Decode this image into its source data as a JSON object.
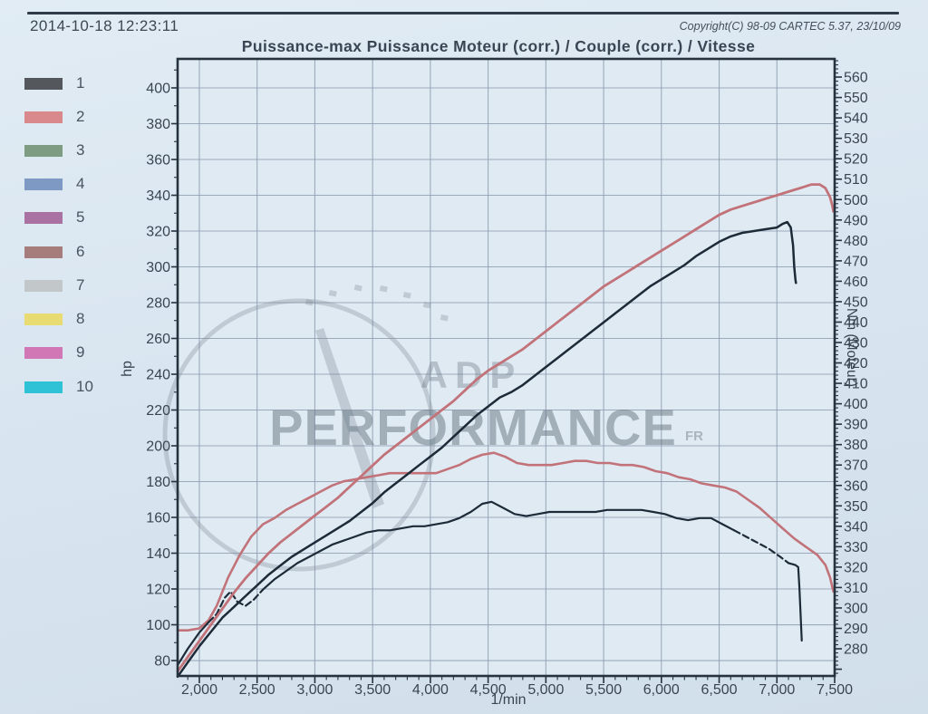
{
  "page": {
    "timestamp": "2014-10-18 12:23:11",
    "copyright": "Copyright(C) 98-09 CARTEC 5.37, 23/10/09",
    "title": "Puissance-max Puissance Moteur (corr.) / Couple (corr.) / Vitesse"
  },
  "legend": {
    "items": [
      {
        "label": "1",
        "color": "#54575c"
      },
      {
        "label": "2",
        "color": "#d9898c"
      },
      {
        "label": "3",
        "color": "#7d9c81"
      },
      {
        "label": "4",
        "color": "#7d99c4"
      },
      {
        "label": "5",
        "color": "#a972a2"
      },
      {
        "label": "6",
        "color": "#a67d7b"
      },
      {
        "label": "7",
        "color": "#c2c7ca"
      },
      {
        "label": "8",
        "color": "#e7db72"
      },
      {
        "label": "9",
        "color": "#d177b5"
      },
      {
        "label": "10",
        "color": "#2fc2d6"
      }
    ]
  },
  "watermark": {
    "top_text": "ADP",
    "main_text": "PERFORMANCE",
    "suffix_text": "FR"
  },
  "colors": {
    "axis": "#26323e",
    "grid": "#8fa0b2",
    "plot_bg": "#e0eaf3",
    "text": "#3b4552",
    "curve_dark": "#1d2b38",
    "curve_red": "#c2737a"
  },
  "chart_data": {
    "type": "line",
    "title": "Puissance-max Puissance Moteur (corr.) / Couple (corr.) / Vitesse",
    "xlabel": "1/min",
    "ylabel_left": "hp",
    "ylabel_right": "Nm (Moteur)",
    "x_range": [
      1812,
      7500
    ],
    "y_left_range": [
      71.4,
      416.2
    ],
    "y_right_range": [
      266.7,
      568.9
    ],
    "x_ticks": [
      {
        "value": 2000,
        "label": "2,000"
      },
      {
        "value": 2500,
        "label": "2,500"
      },
      {
        "value": 3000,
        "label": "3,000"
      },
      {
        "value": 3500,
        "label": "3,500"
      },
      {
        "value": 4000,
        "label": "4,000"
      },
      {
        "value": 4500,
        "label": "4,500"
      },
      {
        "value": 5000,
        "label": "5,000"
      },
      {
        "value": 5500,
        "label": "5,500"
      },
      {
        "value": 6000,
        "label": "6,000"
      },
      {
        "value": 6500,
        "label": "6,500"
      },
      {
        "value": 7000,
        "label": "7,000"
      },
      {
        "value": 7500,
        "label": "7,500"
      }
    ],
    "y_left_ticks": [
      80,
      100,
      120,
      140,
      160,
      180,
      200,
      220,
      240,
      260,
      280,
      300,
      320,
      340,
      360,
      380,
      400
    ],
    "y_right_ticks": [
      280,
      290,
      300,
      310,
      320,
      330,
      340,
      350,
      360,
      370,
      380,
      390,
      400,
      410,
      420,
      430,
      440,
      450,
      460,
      470,
      480,
      490,
      500,
      510,
      520,
      530,
      540,
      550,
      560
    ],
    "x_minor_step": 100,
    "y_left_minor_step": 10,
    "y_right_minor_step": 2,
    "grid": {
      "vertical_step_rpm": 500,
      "horizontal_step_hp": 20,
      "grid_on": true
    },
    "legend_position": "left",
    "series": [
      {
        "name": "couple_corr_run_red",
        "legend_ref": "2",
        "axis": "right",
        "color": "#c2737a",
        "width": 2.6,
        "unit": "Nm",
        "points": [
          [
            1812,
            289
          ],
          [
            1900,
            289
          ],
          [
            2000,
            290
          ],
          [
            2080,
            294
          ],
          [
            2150,
            301
          ],
          [
            2250,
            315
          ],
          [
            2350,
            326
          ],
          [
            2450,
            335
          ],
          [
            2550,
            341
          ],
          [
            2650,
            344
          ],
          [
            2750,
            348
          ],
          [
            2850,
            351
          ],
          [
            2950,
            354
          ],
          [
            3050,
            357
          ],
          [
            3150,
            360
          ],
          [
            3250,
            362
          ],
          [
            3350,
            363
          ],
          [
            3450,
            364
          ],
          [
            3550,
            365
          ],
          [
            3650,
            366
          ],
          [
            3750,
            366
          ],
          [
            3850,
            366
          ],
          [
            3950,
            366
          ],
          [
            4050,
            366
          ],
          [
            4150,
            368
          ],
          [
            4250,
            370
          ],
          [
            4350,
            373
          ],
          [
            4450,
            375
          ],
          [
            4550,
            376
          ],
          [
            4650,
            374
          ],
          [
            4750,
            371
          ],
          [
            4850,
            370
          ],
          [
            4950,
            370
          ],
          [
            5050,
            370
          ],
          [
            5150,
            371
          ],
          [
            5250,
            372
          ],
          [
            5350,
            372
          ],
          [
            5450,
            371
          ],
          [
            5550,
            371
          ],
          [
            5650,
            370
          ],
          [
            5750,
            370
          ],
          [
            5850,
            369
          ],
          [
            5950,
            367
          ],
          [
            6050,
            366
          ],
          [
            6150,
            364
          ],
          [
            6250,
            363
          ],
          [
            6350,
            361
          ],
          [
            6450,
            360
          ],
          [
            6550,
            359
          ],
          [
            6650,
            357
          ],
          [
            6750,
            353
          ],
          [
            6850,
            349
          ],
          [
            6950,
            344
          ],
          [
            7050,
            339
          ],
          [
            7150,
            334
          ],
          [
            7250,
            330
          ],
          [
            7350,
            326
          ],
          [
            7420,
            321
          ],
          [
            7460,
            315
          ],
          [
            7480,
            310
          ],
          [
            7490,
            308
          ]
        ]
      },
      {
        "name": "couple_corr_run_dark",
        "legend_ref": "1",
        "axis": "right",
        "color": "#1d2b38",
        "width": 2.2,
        "unit": "Nm",
        "dash_ranges": [
          [
            2050,
            2570
          ],
          [
            6620,
            7090
          ]
        ],
        "points": [
          [
            1812,
            272
          ],
          [
            1900,
            280
          ],
          [
            2000,
            288
          ],
          [
            2080,
            293
          ],
          [
            2150,
            297
          ],
          [
            2220,
            305
          ],
          [
            2270,
            308
          ],
          [
            2330,
            303
          ],
          [
            2400,
            301
          ],
          [
            2470,
            304
          ],
          [
            2550,
            309
          ],
          [
            2650,
            314
          ],
          [
            2750,
            318
          ],
          [
            2850,
            322
          ],
          [
            2950,
            325
          ],
          [
            3050,
            328
          ],
          [
            3150,
            331
          ],
          [
            3250,
            333
          ],
          [
            3350,
            335
          ],
          [
            3450,
            337
          ],
          [
            3550,
            338
          ],
          [
            3650,
            338
          ],
          [
            3750,
            339
          ],
          [
            3850,
            340
          ],
          [
            3950,
            340
          ],
          [
            4050,
            341
          ],
          [
            4150,
            342
          ],
          [
            4250,
            344
          ],
          [
            4350,
            347
          ],
          [
            4450,
            351
          ],
          [
            4530,
            352
          ],
          [
            4630,
            349
          ],
          [
            4730,
            346
          ],
          [
            4830,
            345
          ],
          [
            4930,
            346
          ],
          [
            5030,
            347
          ],
          [
            5130,
            347
          ],
          [
            5230,
            347
          ],
          [
            5330,
            347
          ],
          [
            5430,
            347
          ],
          [
            5530,
            348
          ],
          [
            5630,
            348
          ],
          [
            5730,
            348
          ],
          [
            5830,
            348
          ],
          [
            5930,
            347
          ],
          [
            6030,
            346
          ],
          [
            6130,
            344
          ],
          [
            6230,
            343
          ],
          [
            6330,
            344
          ],
          [
            6430,
            344
          ],
          [
            6530,
            341
          ],
          [
            6630,
            338
          ],
          [
            6730,
            335
          ],
          [
            6830,
            332
          ],
          [
            6930,
            329
          ],
          [
            7030,
            325
          ],
          [
            7100,
            322
          ],
          [
            7160,
            321
          ],
          [
            7185,
            320
          ],
          [
            7195,
            310
          ],
          [
            7205,
            297
          ],
          [
            7215,
            284
          ]
        ]
      },
      {
        "name": "puissance_corr_run_red",
        "legend_ref": "2",
        "axis": "left",
        "color": "#c2737a",
        "width": 2.8,
        "unit": "hp",
        "points": [
          [
            1812,
            74
          ],
          [
            1900,
            82
          ],
          [
            2000,
            91
          ],
          [
            2100,
            100
          ],
          [
            2200,
            109
          ],
          [
            2300,
            118
          ],
          [
            2400,
            126
          ],
          [
            2500,
            133
          ],
          [
            2600,
            140
          ],
          [
            2700,
            146
          ],
          [
            2800,
            151
          ],
          [
            2900,
            156
          ],
          [
            3000,
            161
          ],
          [
            3100,
            166
          ],
          [
            3200,
            171
          ],
          [
            3300,
            177
          ],
          [
            3400,
            183
          ],
          [
            3500,
            189
          ],
          [
            3600,
            195
          ],
          [
            3700,
            200
          ],
          [
            3800,
            205
          ],
          [
            3900,
            210
          ],
          [
            4000,
            215
          ],
          [
            4100,
            220
          ],
          [
            4200,
            225
          ],
          [
            4300,
            231
          ],
          [
            4400,
            237
          ],
          [
            4500,
            242
          ],
          [
            4600,
            246
          ],
          [
            4700,
            250
          ],
          [
            4800,
            254
          ],
          [
            4900,
            259
          ],
          [
            5000,
            264
          ],
          [
            5100,
            269
          ],
          [
            5200,
            274
          ],
          [
            5300,
            279
          ],
          [
            5400,
            284
          ],
          [
            5500,
            289
          ],
          [
            5600,
            293
          ],
          [
            5700,
            297
          ],
          [
            5800,
            301
          ],
          [
            5900,
            305
          ],
          [
            6000,
            309
          ],
          [
            6100,
            313
          ],
          [
            6200,
            317
          ],
          [
            6300,
            321
          ],
          [
            6400,
            325
          ],
          [
            6500,
            329
          ],
          [
            6600,
            332
          ],
          [
            6700,
            334
          ],
          [
            6800,
            336
          ],
          [
            6900,
            338
          ],
          [
            7000,
            340
          ],
          [
            7100,
            342
          ],
          [
            7200,
            344
          ],
          [
            7300,
            346
          ],
          [
            7370,
            346
          ],
          [
            7420,
            344
          ],
          [
            7460,
            339
          ],
          [
            7480,
            334
          ],
          [
            7490,
            331
          ]
        ]
      },
      {
        "name": "puissance_corr_run_dark",
        "legend_ref": "1",
        "axis": "left",
        "color": "#1d2b38",
        "width": 2.5,
        "unit": "hp",
        "points": [
          [
            1812,
            71
          ],
          [
            1900,
            79
          ],
          [
            2000,
            88
          ],
          [
            2100,
            96
          ],
          [
            2200,
            104
          ],
          [
            2300,
            110
          ],
          [
            2400,
            116
          ],
          [
            2500,
            122
          ],
          [
            2600,
            128
          ],
          [
            2700,
            133
          ],
          [
            2800,
            138
          ],
          [
            2900,
            142
          ],
          [
            3000,
            146
          ],
          [
            3100,
            150
          ],
          [
            3200,
            154
          ],
          [
            3300,
            158
          ],
          [
            3400,
            163
          ],
          [
            3500,
            168
          ],
          [
            3600,
            174
          ],
          [
            3700,
            179
          ],
          [
            3800,
            184
          ],
          [
            3900,
            189
          ],
          [
            4000,
            194
          ],
          [
            4100,
            199
          ],
          [
            4200,
            205
          ],
          [
            4300,
            211
          ],
          [
            4400,
            217
          ],
          [
            4500,
            222
          ],
          [
            4600,
            227
          ],
          [
            4700,
            230
          ],
          [
            4800,
            234
          ],
          [
            4900,
            239
          ],
          [
            5000,
            244
          ],
          [
            5100,
            249
          ],
          [
            5200,
            254
          ],
          [
            5300,
            259
          ],
          [
            5400,
            264
          ],
          [
            5500,
            269
          ],
          [
            5600,
            274
          ],
          [
            5700,
            279
          ],
          [
            5800,
            284
          ],
          [
            5900,
            289
          ],
          [
            6000,
            293
          ],
          [
            6100,
            297
          ],
          [
            6200,
            301
          ],
          [
            6300,
            306
          ],
          [
            6400,
            310
          ],
          [
            6500,
            314
          ],
          [
            6600,
            317
          ],
          [
            6700,
            319
          ],
          [
            6800,
            320
          ],
          [
            6900,
            321
          ],
          [
            7000,
            322
          ],
          [
            7050,
            324
          ],
          [
            7090,
            325
          ],
          [
            7120,
            322
          ],
          [
            7140,
            312
          ],
          [
            7150,
            300
          ],
          [
            7160,
            293
          ],
          [
            7165,
            291
          ]
        ]
      }
    ]
  }
}
